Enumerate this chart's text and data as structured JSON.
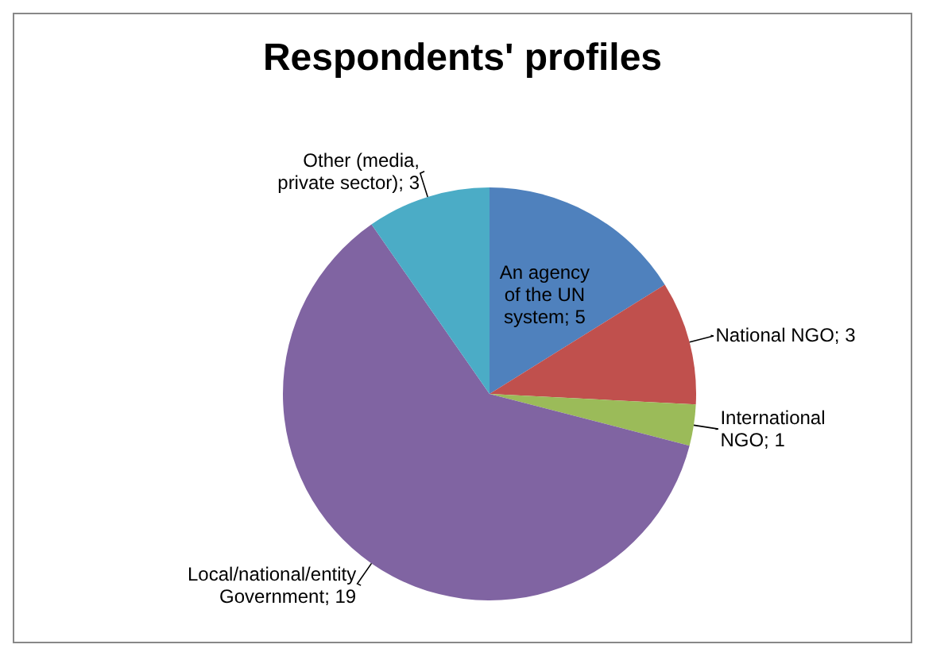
{
  "chart_data": {
    "type": "pie",
    "title": "Respondents' profiles",
    "categories": [
      "An agency of the UN system",
      "National NGO",
      "International NGO",
      "Local/national/entity Government",
      "Other (media, private sector)"
    ],
    "values": [
      5,
      3,
      1,
      19,
      3
    ],
    "colors": [
      "#4f81bd",
      "#c0504d",
      "#9bbb59",
      "#8064a2",
      "#4bacc6"
    ],
    "value_labels": [
      "; 5",
      "; 3",
      "; 1",
      "; 19",
      "; 3"
    ],
    "legend": false
  }
}
